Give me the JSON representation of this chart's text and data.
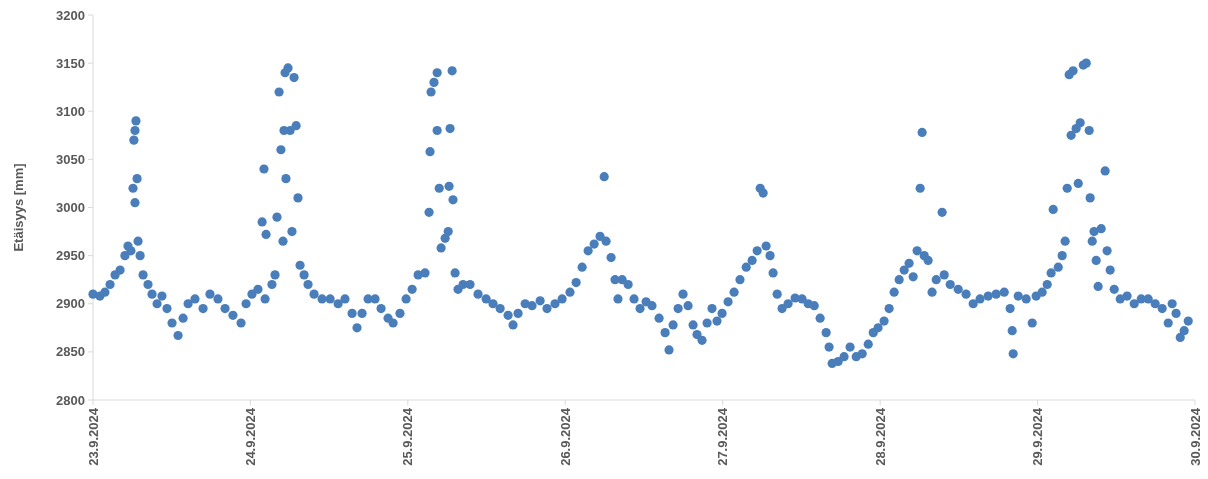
{
  "chart_data": {
    "type": "scatter",
    "ylabel": "Etäisyys [mm]",
    "marker": "circle",
    "grid": false,
    "xlim": [
      "2024-09-23",
      "2024-09-30"
    ],
    "ylim": [
      2800,
      3200
    ],
    "xticks": [
      {
        "value": "2024-09-23",
        "label": "23.9.2024"
      },
      {
        "value": "2024-09-24",
        "label": "24.9.2024"
      },
      {
        "value": "2024-09-25",
        "label": "25.9.2024"
      },
      {
        "value": "2024-09-26",
        "label": "26.9.2024"
      },
      {
        "value": "2024-09-27",
        "label": "27.9.2024"
      },
      {
        "value": "2024-09-28",
        "label": "28.9.2024"
      },
      {
        "value": "2024-09-29",
        "label": "29.9.2024"
      },
      {
        "value": "2024-09-30",
        "label": "30.9.2024"
      }
    ],
    "yticks": [
      2800,
      2850,
      2900,
      2950,
      3000,
      3050,
      3100,
      3150,
      3200
    ],
    "series": [
      {
        "color": "#4a7ebb",
        "x": [
          "2024-09-23T00:00",
          "2024-09-23T01:03",
          "2024-09-23T01:49",
          "2024-09-23T02:36",
          "2024-09-23T03:22",
          "2024-09-23T04:08",
          "2024-09-23T04:52",
          "2024-09-23T05:20",
          "2024-09-23T05:47",
          "2024-09-23T06:06",
          "2024-09-23T06:14",
          "2024-09-23T06:24",
          "2024-09-23T06:33",
          "2024-09-23T06:24",
          "2024-09-23T06:43",
          "2024-09-23T06:52",
          "2024-09-23T07:11",
          "2024-09-23T07:38",
          "2024-09-23T08:23",
          "2024-09-23T09:00",
          "2024-09-23T09:46",
          "2024-09-23T10:31",
          "2024-09-23T11:17",
          "2024-09-23T12:03",
          "2024-09-23T12:58",
          "2024-09-23T13:44",
          "2024-09-23T14:30",
          "2024-09-23T15:33",
          "2024-09-23T16:47",
          "2024-09-23T17:50",
          "2024-09-23T19:03",
          "2024-09-23T20:08",
          "2024-09-23T21:20",
          "2024-09-23T22:34",
          "2024-09-23T23:20",
          "2024-09-24T00:14",
          "2024-09-24T01:09",
          "2024-09-24T02:14",
          "2024-09-24T01:47",
          "2024-09-24T02:04",
          "2024-09-24T02:23",
          "2024-09-24T03:17",
          "2024-09-24T03:45",
          "2024-09-24T04:03",
          "2024-09-24T04:22",
          "2024-09-24T04:39",
          "2024-09-24T04:58",
          "2024-09-24T05:07",
          "2024-09-24T05:17",
          "2024-09-24T05:25",
          "2024-09-24T05:44",
          "2024-09-24T06:03",
          "2024-09-24T06:20",
          "2024-09-24T06:39",
          "2024-09-24T06:58",
          "2024-09-24T07:15",
          "2024-09-24T07:34",
          "2024-09-24T08:11",
          "2024-09-24T08:47",
          "2024-09-24T09:42",
          "2024-09-24T10:55",
          "2024-09-24T12:09",
          "2024-09-24T13:22",
          "2024-09-24T14:25",
          "2024-09-24T15:30",
          "2024-09-24T16:15",
          "2024-09-24T17:01",
          "2024-09-24T17:56",
          "2024-09-24T19:00",
          "2024-09-24T19:55",
          "2024-09-24T20:59",
          "2024-09-24T21:45",
          "2024-09-24T22:48",
          "2024-09-24T23:44",
          "2024-09-25T00:39",
          "2024-09-25T01:34",
          "2024-09-25T02:37",
          "2024-09-25T03:14",
          "2024-09-25T03:23",
          "2024-09-25T03:32",
          "2024-09-25T03:59",
          "2024-09-25T04:28",
          "2024-09-25T04:28",
          "2024-09-25T04:47",
          "2024-09-25T05:04",
          "2024-09-25T05:41",
          "2024-09-25T06:09",
          "2024-09-25T06:17",
          "2024-09-25T06:26",
          "2024-09-25T06:45",
          "2024-09-25T06:53",
          "2024-09-25T07:12",
          "2024-09-25T07:39",
          "2024-09-25T08:25",
          "2024-09-25T09:29",
          "2024-09-25T10:42",
          "2024-09-25T11:56",
          "2024-09-25T12:59",
          "2024-09-25T14:04",
          "2024-09-25T15:17",
          "2024-09-25T16:02",
          "2024-09-25T16:48",
          "2024-09-25T17:53",
          "2024-09-25T18:56",
          "2024-09-25T20:10",
          "2024-09-25T21:13",
          "2024-09-25T22:26",
          "2024-09-25T23:31",
          "2024-09-26T00:43",
          "2024-09-26T01:39",
          "2024-09-26T02:34",
          "2024-09-26T03:29",
          "2024-09-26T04:24",
          "2024-09-26T05:18",
          "2024-09-26T05:56",
          "2024-09-26T06:13",
          "2024-09-26T06:59",
          "2024-09-26T07:35",
          "2024-09-26T08:02",
          "2024-09-26T08:40",
          "2024-09-26T09:35",
          "2024-09-26T10:29",
          "2024-09-26T11:24",
          "2024-09-26T12:19",
          "2024-09-26T13:13",
          "2024-09-26T14:18",
          "2024-09-26T15:13",
          "2024-09-26T15:49",
          "2024-09-26T16:26",
          "2024-09-26T17:12",
          "2024-09-26T17:57",
          "2024-09-26T18:43",
          "2024-09-26T19:29",
          "2024-09-26T20:05",
          "2024-09-26T20:51",
          "2024-09-26T21:37",
          "2024-09-26T22:22",
          "2024-09-26T23:08",
          "2024-09-26T23:54",
          "2024-09-27T00:49",
          "2024-09-27T01:44",
          "2024-09-27T02:38",
          "2024-09-27T03:35",
          "2024-09-27T04:29",
          "2024-09-27T05:15",
          "2024-09-27T05:43",
          "2024-09-27T06:10",
          "2024-09-27T06:37",
          "2024-09-27T07:13",
          "2024-09-27T07:41",
          "2024-09-27T08:18",
          "2024-09-27T09:03",
          "2024-09-27T09:58",
          "2024-09-27T11:02",
          "2024-09-27T12:06",
          "2024-09-27T13:02",
          "2024-09-27T13:57",
          "2024-09-27T14:51",
          "2024-09-27T15:46",
          "2024-09-27T16:13",
          "2024-09-27T16:41",
          "2024-09-27T17:36",
          "2024-09-27T18:30",
          "2024-09-27T19:25",
          "2024-09-27T20:21",
          "2024-09-27T21:16",
          "2024-09-27T22:11",
          "2024-09-27T22:57",
          "2024-09-27T23:41",
          "2024-09-28T00:36",
          "2024-09-28T01:22",
          "2024-09-28T02:08",
          "2024-09-28T02:54",
          "2024-09-28T03:40",
          "2024-09-28T04:25",
          "2024-09-28T05:02",
          "2024-09-28T05:38",
          "2024-09-28T06:06",
          "2024-09-28T06:24",
          "2024-09-28T06:43",
          "2024-09-28T07:19",
          "2024-09-28T07:55",
          "2024-09-28T08:33",
          "2024-09-28T09:27",
          "2024-09-28T09:46",
          "2024-09-28T10:41",
          "2024-09-28T11:54",
          "2024-09-28T13:06",
          "2024-09-28T14:11",
          "2024-09-28T15:14",
          "2024-09-28T16:28",
          "2024-09-28T17:41",
          "2024-09-28T18:55",
          "2024-09-28T19:49",
          "2024-09-28T20:08",
          "2024-09-28T20:17",
          "2024-09-28T21:03",
          "2024-09-28T22:16",
          "2024-09-28T23:11",
          "2024-09-28T23:47",
          "2024-09-29T00:42",
          "2024-09-29T01:28",
          "2024-09-29T02:04",
          "2024-09-29T02:23",
          "2024-09-29T03:09",
          "2024-09-29T03:45",
          "2024-09-29T04:12",
          "2024-09-29T04:31",
          "2024-09-29T04:49",
          "2024-09-29T05:07",
          "2024-09-29T05:25",
          "2024-09-29T05:53",
          "2024-09-29T06:12",
          "2024-09-29T06:30",
          "2024-09-29T06:58",
          "2024-09-29T07:25",
          "2024-09-29T07:52",
          "2024-09-29T08:01",
          "2024-09-29T08:20",
          "2024-09-29T08:37",
          "2024-09-29T08:56",
          "2024-09-29T09:14",
          "2024-09-29T09:42",
          "2024-09-29T10:18",
          "2024-09-29T10:36",
          "2024-09-29T11:04",
          "2024-09-29T11:41",
          "2024-09-29T12:36",
          "2024-09-29T13:39",
          "2024-09-29T14:44",
          "2024-09-29T15:48",
          "2024-09-29T16:52",
          "2024-09-29T17:56",
          "2024-09-29T19:00",
          "2024-09-29T19:55",
          "2024-09-29T20:31",
          "2024-09-29T21:07",
          "2024-09-29T21:45",
          "2024-09-29T22:21",
          "2024-09-29T22:58"
        ],
        "values": [
          2910,
          2908,
          2912,
          2920,
          2930,
          2935,
          2950,
          2960,
          2955,
          3020,
          3070,
          3080,
          3090,
          3005,
          3030,
          2965,
          2950,
          2930,
          2920,
          2910,
          2900,
          2908,
          2895,
          2880,
          2867,
          2885,
          2900,
          2905,
          2895,
          2910,
          2905,
          2895,
          2888,
          2880,
          2900,
          2910,
          2915,
          2905,
          2985,
          3040,
          2972,
          2920,
          2930,
          2990,
          3120,
          3060,
          2965,
          3080,
          3140,
          3030,
          3145,
          3080,
          2975,
          3135,
          3085,
          3010,
          2940,
          2930,
          2920,
          2910,
          2905,
          2905,
          2900,
          2905,
          2890,
          2875,
          2890,
          2905,
          2905,
          2895,
          2885,
          2880,
          2890,
          2905,
          2915,
          2930,
          2932,
          2995,
          3058,
          3120,
          3130,
          3140,
          3080,
          3020,
          2958,
          2968,
          2975,
          3022,
          3082,
          3142,
          3008,
          2932,
          2915,
          2920,
          2920,
          2910,
          2905,
          2900,
          2895,
          2888,
          2878,
          2890,
          2900,
          2898,
          2903,
          2895,
          2900,
          2905,
          2912,
          2922,
          2938,
          2955,
          2962,
          2970,
          3032,
          2965,
          2948,
          2925,
          2905,
          2925,
          2920,
          2905,
          2895,
          2902,
          2898,
          2885,
          2870,
          2852,
          2878,
          2895,
          2910,
          2898,
          2878,
          2868,
          2862,
          2880,
          2895,
          2882,
          2890,
          2902,
          2912,
          2925,
          2938,
          2945,
          2955,
          3020,
          3015,
          2960,
          2950,
          2932,
          2910,
          2895,
          2900,
          2906,
          2905,
          2900,
          2898,
          2885,
          2870,
          2855,
          2838,
          2840,
          2845,
          2855,
          2845,
          2848,
          2858,
          2870,
          2875,
          2882,
          2895,
          2912,
          2925,
          2935,
          2942,
          2928,
          2955,
          3020,
          3078,
          2950,
          2945,
          2912,
          2925,
          2995,
          2930,
          2920,
          2915,
          2910,
          2900,
          2905,
          2908,
          2910,
          2912,
          2895,
          2872,
          2848,
          2908,
          2905,
          2880,
          2908,
          2912,
          2920,
          2932,
          2998,
          2938,
          2950,
          2965,
          3020,
          3138,
          3075,
          3142,
          3082,
          3025,
          3088,
          3148,
          3150,
          3080,
          3010,
          2965,
          2975,
          2945,
          2918,
          2978,
          3038,
          2955,
          2935,
          2915,
          2905,
          2908,
          2900,
          2905,
          2905,
          2900,
          2895,
          2880,
          2900,
          2890,
          2865,
          2872,
          2882
        ]
      }
    ]
  }
}
